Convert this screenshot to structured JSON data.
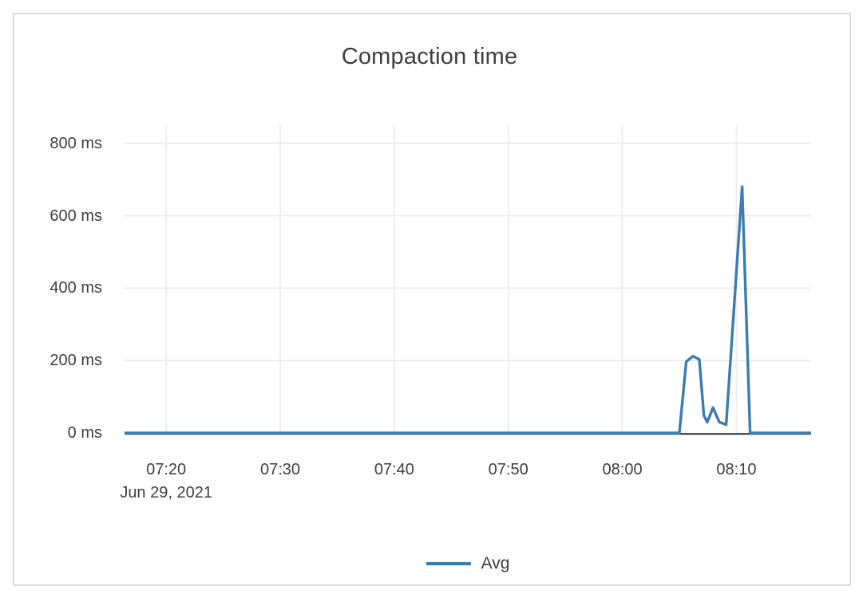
{
  "chart_data": {
    "type": "line",
    "title": "Compaction time",
    "grid": true,
    "legend_position": "bottom",
    "colors": {
      "series_blue": "#3c7cb0",
      "gridline": "#ececee",
      "axis_line": "#37393c",
      "text": "#3f3f42",
      "card_border": "#dcdcdc"
    },
    "x_axis": {
      "date_label": "Jun 29, 2021",
      "range": [
        "07:16:21",
        "08:16:33"
      ],
      "ticks": [
        {
          "time": "07:20",
          "label": "07:20"
        },
        {
          "time": "07:30",
          "label": "07:30"
        },
        {
          "time": "07:40",
          "label": "07:40"
        },
        {
          "time": "07:50",
          "label": "07:50"
        },
        {
          "time": "08:00",
          "label": "08:00"
        },
        {
          "time": "08:10",
          "label": "08:10"
        }
      ]
    },
    "y_axis": {
      "unit": "ms",
      "range": [
        0,
        850
      ],
      "ticks": [
        {
          "v": 0,
          "label": "0 ms"
        },
        {
          "v": 200,
          "label": "200 ms"
        },
        {
          "v": 400,
          "label": "400 ms"
        },
        {
          "v": 600,
          "label": "600 ms"
        },
        {
          "v": 800,
          "label": "800 ms"
        }
      ]
    },
    "series": [
      {
        "name": "Avg",
        "color": "#3c7cb0",
        "points_time_value": [
          [
            "07:16:21",
            0
          ],
          [
            "08:05:00",
            0
          ],
          [
            "08:05:36",
            197
          ],
          [
            "08:06:12",
            212
          ],
          [
            "08:06:45",
            203
          ],
          [
            "08:07:09",
            48
          ],
          [
            "08:07:27",
            30
          ],
          [
            "08:07:57",
            70
          ],
          [
            "08:08:30",
            30
          ],
          [
            "08:09:06",
            23
          ],
          [
            "08:10:30",
            680
          ],
          [
            "08:11:12",
            0
          ],
          [
            "08:16:33",
            0
          ]
        ]
      }
    ]
  }
}
